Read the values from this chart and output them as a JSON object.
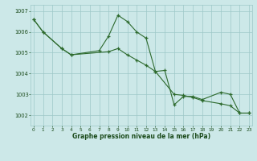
{
  "s1_x": [
    0,
    1,
    3,
    4,
    8,
    9,
    10,
    11,
    12,
    13,
    15,
    16,
    17,
    18,
    20,
    21,
    22,
    23
  ],
  "s1_y": [
    1006.6,
    1006.0,
    1005.2,
    1004.9,
    1005.05,
    1005.2,
    1004.9,
    1004.65,
    1004.4,
    1004.1,
    1003.0,
    1002.95,
    1002.85,
    1002.7,
    1002.55,
    1002.45,
    1002.1,
    1002.1
  ],
  "s2_x": [
    0,
    1,
    3,
    4,
    7,
    8,
    9,
    10,
    11,
    12,
    13,
    14,
    15,
    16,
    17,
    18,
    20,
    21,
    22,
    23
  ],
  "s2_y": [
    1006.6,
    1006.0,
    1005.2,
    1004.9,
    1005.1,
    1005.8,
    1006.8,
    1006.5,
    1006.0,
    1005.7,
    1004.1,
    1004.15,
    1002.5,
    1002.9,
    1002.9,
    1002.75,
    1003.1,
    1003.0,
    1002.1,
    1002.1
  ],
  "line_color": "#2d6a2d",
  "bg_color": "#cce8e8",
  "grid_color": "#9dc8c8",
  "text_color": "#1a4a1a",
  "xlabel": "Graphe pression niveau de la mer (hPa)",
  "ylim": [
    1001.5,
    1007.3
  ],
  "yticks": [
    1002,
    1003,
    1004,
    1005,
    1006,
    1007
  ],
  "xticks": [
    0,
    1,
    2,
    3,
    4,
    5,
    6,
    7,
    8,
    9,
    10,
    11,
    12,
    13,
    14,
    15,
    16,
    17,
    18,
    19,
    20,
    21,
    22,
    23
  ]
}
